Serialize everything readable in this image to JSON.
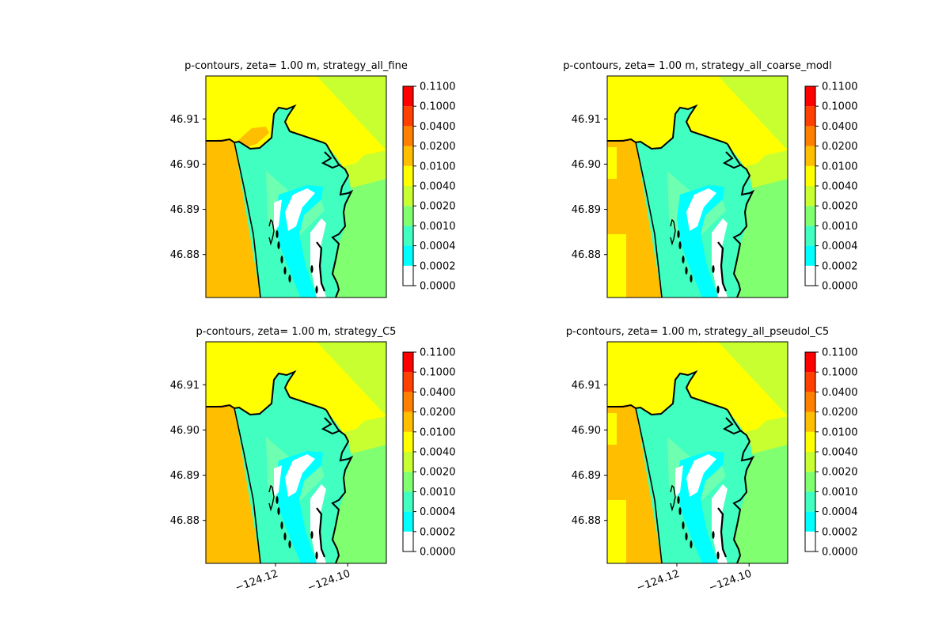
{
  "colors": {
    "background": "#ffffff",
    "coastline": "#000000",
    "levels": [
      "#ffffff",
      "#00ffff",
      "#40ffc0",
      "#80ff70",
      "#c8ff30",
      "#ffff00",
      "#ffbf00",
      "#ff8000",
      "#ff4000",
      "#ff0000"
    ]
  },
  "chart_data": [
    {
      "type": "heatmap",
      "title": "p-contours, zeta= 1.00 m, strategy_all_fine",
      "ytick_labels": [
        "46.91",
        "46.90",
        "46.89",
        "46.88"
      ],
      "yticks": [
        46.91,
        46.9,
        46.89,
        46.88
      ],
      "ylim": [
        46.8705,
        46.9195
      ],
      "xlim": [
        -124.1393,
        -124.0893
      ],
      "xticks": [],
      "xtick_labels": [],
      "colorbar": {
        "boundaries": [
          0.0,
          0.0002,
          0.0004,
          0.001,
          0.002,
          0.004,
          0.01,
          0.02,
          0.04,
          0.1,
          0.11
        ],
        "tick_labels": [
          "0.0000",
          "0.0002",
          "0.0004",
          "0.0010",
          "0.0020",
          "0.0040",
          "0.0100",
          "0.0200",
          "0.0400",
          "0.1000",
          "0.1100"
        ]
      },
      "grid": false
    },
    {
      "type": "heatmap",
      "title": "p-contours, zeta= 1.00 m, strategy_all_coarse_modl",
      "ytick_labels": [
        "46.91",
        "46.90",
        "46.89",
        "46.88"
      ],
      "yticks": [
        46.91,
        46.9,
        46.89,
        46.88
      ],
      "ylim": [
        46.8705,
        46.9195
      ],
      "xlim": [
        -124.1393,
        -124.0893
      ],
      "xticks": [],
      "xtick_labels": [],
      "colorbar": {
        "boundaries": [
          0.0,
          0.0002,
          0.0004,
          0.001,
          0.002,
          0.004,
          0.01,
          0.02,
          0.04,
          0.1,
          0.11
        ],
        "tick_labels": [
          "0.0000",
          "0.0002",
          "0.0004",
          "0.0010",
          "0.0020",
          "0.0040",
          "0.0100",
          "0.0200",
          "0.0400",
          "0.1000",
          "0.1100"
        ]
      },
      "grid": false
    },
    {
      "type": "heatmap",
      "title": "p-contours, zeta= 1.00 m, strategy_C5",
      "ytick_labels": [
        "46.91",
        "46.90",
        "46.89",
        "46.88"
      ],
      "yticks": [
        46.91,
        46.9,
        46.89,
        46.88
      ],
      "ylim": [
        46.8705,
        46.9195
      ],
      "xlim": [
        -124.1393,
        -124.0893
      ],
      "xticks": [
        -124.12,
        -124.1
      ],
      "xtick_labels": [
        "−124.12",
        "−124.10"
      ],
      "colorbar": {
        "boundaries": [
          0.0,
          0.0002,
          0.0004,
          0.001,
          0.002,
          0.004,
          0.01,
          0.02,
          0.04,
          0.1,
          0.11
        ],
        "tick_labels": [
          "0.0000",
          "0.0002",
          "0.0004",
          "0.0010",
          "0.0020",
          "0.0040",
          "0.0100",
          "0.0200",
          "0.0400",
          "0.1000",
          "0.1100"
        ]
      },
      "grid": false
    },
    {
      "type": "heatmap",
      "title": "p-contours, zeta= 1.00 m, strategy_all_pseudol_C5",
      "ytick_labels": [
        "46.91",
        "46.90",
        "46.89",
        "46.88"
      ],
      "yticks": [
        46.91,
        46.9,
        46.89,
        46.88
      ],
      "ylim": [
        46.8705,
        46.9195
      ],
      "xlim": [
        -124.1393,
        -124.0893
      ],
      "xticks": [
        -124.12,
        -124.1
      ],
      "xtick_labels": [
        "−124.12",
        "−124.10"
      ],
      "colorbar": {
        "boundaries": [
          0.0,
          0.0002,
          0.0004,
          0.001,
          0.002,
          0.004,
          0.01,
          0.02,
          0.04,
          0.1,
          0.11
        ],
        "tick_labels": [
          "0.0000",
          "0.0002",
          "0.0004",
          "0.0010",
          "0.0020",
          "0.0040",
          "0.0100",
          "0.0200",
          "0.0400",
          "0.1000",
          "0.1100"
        ]
      },
      "grid": false
    }
  ]
}
